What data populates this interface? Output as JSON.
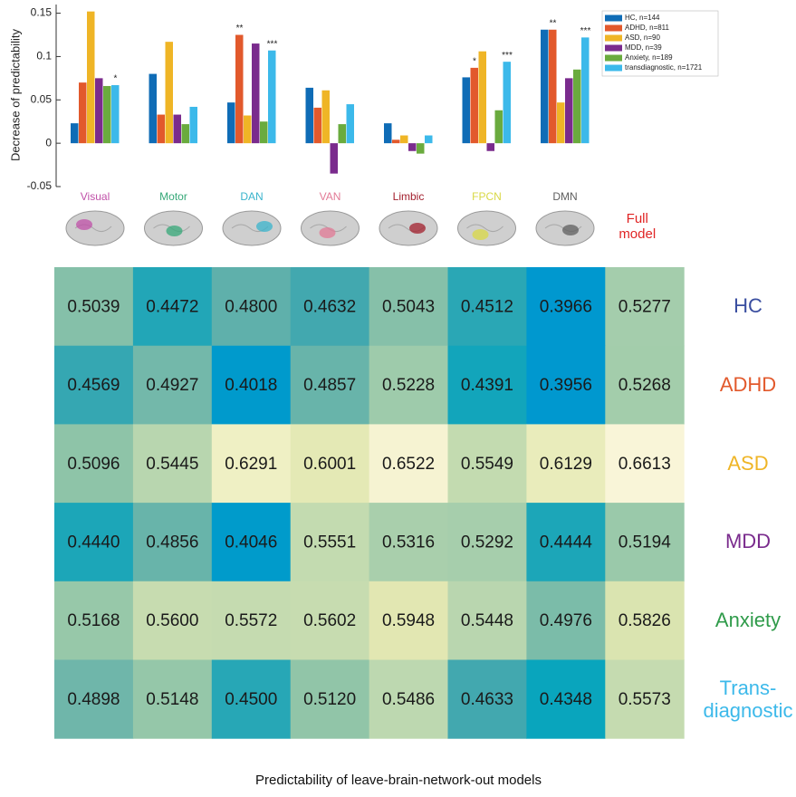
{
  "chart_data": [
    {
      "type": "bar",
      "ylabel": "Decrease of predictability",
      "categories": [
        "Visual",
        "Motor",
        "DAN",
        "VAN",
        "Limbic",
        "FPCN",
        "DMN"
      ],
      "category_colors": [
        "#c050a8",
        "#36a878",
        "#3ab4cc",
        "#e27a96",
        "#a3202e",
        "#d9d845",
        "#5f5f5f"
      ],
      "ylim": [
        -0.05,
        0.16
      ],
      "yticks": [
        -0.05,
        0,
        0.05,
        0.1,
        0.15
      ],
      "legend": "upper right",
      "series": [
        {
          "name": "HC, n=144",
          "color": "#0f6cb6",
          "values": [
            0.023,
            0.08,
            0.047,
            0.064,
            0.023,
            0.076,
            0.131
          ],
          "significance": [
            null,
            null,
            null,
            null,
            null,
            null,
            null
          ]
        },
        {
          "name": "ADHD, n=811",
          "color": "#e2592c",
          "values": [
            0.07,
            0.033,
            0.125,
            0.041,
            0.004,
            0.087,
            0.131
          ],
          "significance": [
            null,
            null,
            "**",
            null,
            null,
            "*",
            "**"
          ]
        },
        {
          "name": "ASD, n=90",
          "color": "#efb526",
          "values": [
            0.152,
            0.117,
            0.032,
            0.061,
            0.009,
            0.106,
            0.047
          ],
          "significance": [
            null,
            null,
            null,
            null,
            null,
            null,
            null
          ]
        },
        {
          "name": "MDD, n=39",
          "color": "#7a2b8d",
          "values": [
            0.075,
            0.033,
            0.115,
            -0.035,
            -0.009,
            -0.009,
            0.075
          ],
          "significance": [
            null,
            null,
            null,
            null,
            null,
            null,
            null
          ]
        },
        {
          "name": "Anxiety, n=189",
          "color": "#6aab3e",
          "values": [
            0.066,
            0.022,
            0.025,
            0.022,
            -0.012,
            0.038,
            0.085
          ],
          "significance": [
            null,
            null,
            null,
            null,
            null,
            null,
            null
          ]
        },
        {
          "name": "transdiagnostic, n=1721",
          "color": "#3cb9ea",
          "values": [
            0.067,
            0.042,
            0.107,
            0.045,
            0.009,
            0.094,
            0.122
          ],
          "significance": [
            "*",
            null,
            "***",
            null,
            null,
            "***",
            "***"
          ]
        }
      ]
    },
    {
      "type": "heatmap",
      "xlabel": "Predictability of leave-brain-network-out models",
      "columns": [
        null,
        null,
        null,
        null,
        null,
        null,
        null,
        "Full\nmodel"
      ],
      "column_colors": [
        null,
        null,
        null,
        null,
        null,
        null,
        null,
        "#e02424"
      ],
      "rows": [
        "HC",
        "ADHD",
        "ASD",
        "MDD",
        "Anxiety",
        "Trans-\ndiagnostic"
      ],
      "row_colors": [
        "#3a4ea0",
        "#e2592c",
        "#efb526",
        "#7a2b8d",
        "#2f9b4a",
        "#3cb9ea"
      ],
      "clim": [
        0.39,
        0.67
      ],
      "colormap": [
        "#0096d2",
        "#00a4bf",
        "#4fa9ac",
        "#8fc4a8",
        "#bfd9b0",
        "#e0e6b0",
        "#eff0c4",
        "#fcf6de"
      ],
      "values": [
        [
          0.5039,
          0.4472,
          0.48,
          0.4632,
          0.5043,
          0.4512,
          0.3966,
          0.5277
        ],
        [
          0.4569,
          0.4927,
          0.4018,
          0.4857,
          0.5228,
          0.4391,
          0.3956,
          0.5268
        ],
        [
          0.5096,
          0.5445,
          0.6291,
          0.6001,
          0.6522,
          0.5549,
          0.6129,
          0.6613
        ],
        [
          0.444,
          0.4856,
          0.4046,
          0.5551,
          0.5316,
          0.5292,
          0.4444,
          0.5194
        ],
        [
          0.5168,
          0.56,
          0.5572,
          0.5602,
          0.5948,
          0.5448,
          0.4976,
          0.5826
        ],
        [
          0.4898,
          0.5148,
          0.45,
          0.512,
          0.5486,
          0.4633,
          0.4348,
          0.5573
        ]
      ],
      "value_labels": [
        [
          "0.5039",
          "0.4472",
          "0.4800",
          "0.4632",
          "0.5043",
          "0.4512",
          "0.3966",
          "0.5277"
        ],
        [
          "0.4569",
          "0.4927",
          "0.4018",
          "0.4857",
          "0.5228",
          "0.4391",
          "0.3956",
          "0.5268"
        ],
        [
          "0.5096",
          "0.5445",
          "0.6291",
          "0.6001",
          "0.6522",
          "0.5549",
          "0.6129",
          "0.6613"
        ],
        [
          "0.4440",
          "0.4856",
          "0.4046",
          "0.5551",
          "0.5316",
          "0.5292",
          "0.4444",
          "0.5194"
        ],
        [
          "0.5168",
          "0.5600",
          "0.5572",
          "0.5602",
          "0.5948",
          "0.5448",
          "0.4976",
          "0.5826"
        ],
        [
          "0.4898",
          "0.5148",
          "0.4500",
          "0.5120",
          "0.5486",
          "0.4633",
          "0.4348",
          "0.5573"
        ]
      ]
    }
  ]
}
